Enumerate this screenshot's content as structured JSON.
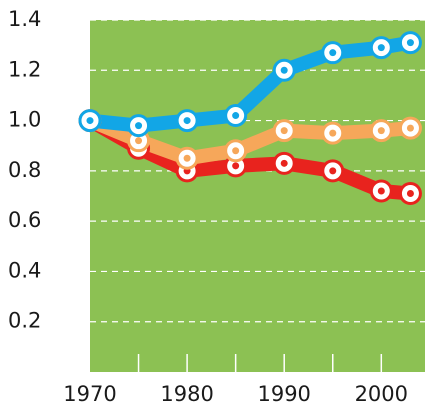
{
  "chart_data": {
    "type": "line",
    "x": [
      1970,
      1975,
      1980,
      1985,
      1990,
      1995,
      2000,
      2003
    ],
    "series": [
      {
        "color": "#e8231e",
        "values": [
          1.0,
          0.89,
          0.8,
          0.82,
          0.83,
          0.8,
          0.72,
          0.71
        ]
      },
      {
        "color": "#f6a75a",
        "values": [
          1.0,
          0.92,
          0.85,
          0.88,
          0.96,
          0.95,
          0.96,
          0.97
        ]
      },
      {
        "color": "#12a6e6",
        "values": [
          1.0,
          0.98,
          1.0,
          1.02,
          1.2,
          1.27,
          1.29,
          1.31
        ]
      }
    ],
    "xlim": [
      1970,
      2004.5
    ],
    "xticks": [
      1970,
      1980,
      1990,
      2000
    ],
    "minor_xticks": [
      1975,
      1980,
      1985,
      1990,
      1995,
      2000
    ],
    "ylim": [
      0,
      1.4
    ],
    "yticks": [
      0.2,
      0.4,
      0.6,
      0.8,
      {
        "value": 1,
        "label": "1.0"
      },
      1.2,
      1.4
    ],
    "grid": true,
    "background": "#8cc153"
  }
}
